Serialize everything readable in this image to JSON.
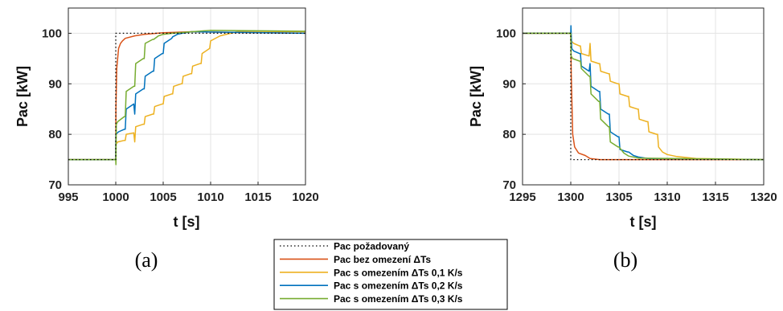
{
  "legend": [
    {
      "label": "Pac požadovaný",
      "color": "#000000",
      "dash": true
    },
    {
      "label": "Pac bez omezení ΔTs",
      "color": "#D95319"
    },
    {
      "label": "Pac s omezením ΔTs 0,1 K/s",
      "color": "#EDB120"
    },
    {
      "label": "Pac s omezením ΔTs 0,2 K/s",
      "color": "#0072BD"
    },
    {
      "label": "Pac s omezením ΔTs 0,3 K/s",
      "color": "#77AC30"
    }
  ],
  "chart_data": [
    {
      "type": "line",
      "panel_label": "(a)",
      "xlabel": "t [s]",
      "ylabel": "Pac [kW]",
      "xlim": [
        995,
        1020
      ],
      "ylim": [
        70,
        105
      ],
      "xticks": [
        995,
        1000,
        1005,
        1010,
        1015,
        1020
      ],
      "yticks": [
        70,
        80,
        90,
        100
      ],
      "grid": true,
      "series": [
        {
          "name": "Pac požadovaný",
          "color": "#000000",
          "dash": true,
          "x": [
            995,
            1000,
            1000,
            1020
          ],
          "y": [
            75,
            75,
            100,
            100
          ]
        },
        {
          "name": "Pac bez omezení ΔTs",
          "color": "#D95319",
          "x": [
            995,
            1000,
            1000.02,
            1000.1,
            1000.3,
            1000.5,
            1000.7,
            1001,
            1002,
            1003,
            1005,
            1008,
            1012,
            1020
          ],
          "y": [
            75,
            75,
            85,
            93,
            97,
            98,
            98.5,
            99,
            99.5,
            99.8,
            100.1,
            100.3,
            100.2,
            100
          ]
        },
        {
          "name": "Pac s omezením ΔTs 0,1 K/s",
          "color": "#EDB120",
          "x": [
            995,
            1000,
            1000.02,
            1000.2,
            1000.9,
            1001,
            1001.1,
            1001.9,
            1002,
            1002.1,
            1002.9,
            1003,
            1003.1,
            1003.9,
            1004,
            1004.1,
            1004.9,
            1005,
            1005.1,
            1005.9,
            1006,
            1006.1,
            1006.9,
            1007,
            1007.1,
            1007.9,
            1008,
            1008.1,
            1008.9,
            1009,
            1009.1,
            1009.9,
            1010,
            1011,
            1013,
            1020
          ],
          "y": [
            75,
            75,
            78,
            78.5,
            78.8,
            78.8,
            80,
            80.3,
            78.5,
            81.5,
            82,
            82,
            83.5,
            84,
            84,
            85.5,
            86,
            86,
            87.5,
            88,
            88,
            89.5,
            90,
            90,
            91.5,
            92,
            92,
            93.5,
            94,
            94,
            96,
            97,
            98.5,
            99.5,
            100.4,
            100.3
          ]
        },
        {
          "name": "Pac s omezením ΔTs 0,2 K/s",
          "color": "#0072BD",
          "x": [
            995,
            1000,
            1000.02,
            1000.3,
            1000.9,
            1001,
            1001.1,
            1001.9,
            1002,
            1002.1,
            1002.9,
            1003,
            1003.1,
            1003.9,
            1004,
            1004.1,
            1004.9,
            1005,
            1005.1,
            1005.9,
            1006,
            1006.5,
            1007,
            1008,
            1020
          ],
          "y": [
            75,
            75,
            80,
            80.5,
            81,
            81,
            85,
            86,
            84,
            88,
            89,
            89,
            91.5,
            92.5,
            92.5,
            95,
            96,
            96,
            98,
            99,
            99.3,
            99.8,
            100,
            100.3,
            100
          ]
        },
        {
          "name": "Pac s omezením ΔTs 0,3 K/s",
          "color": "#77AC30",
          "x": [
            995,
            1000,
            1000.02,
            1000.06,
            1000.2,
            1000.9,
            1001,
            1001.1,
            1001.9,
            1002,
            1002.1,
            1002.9,
            1003,
            1003.1,
            1003.9,
            1004,
            1004.5,
            1005,
            1006,
            1010,
            1020
          ],
          "y": [
            75,
            75,
            74,
            82,
            82.5,
            83.5,
            83.5,
            88.5,
            89.5,
            89.5,
            94,
            95,
            95,
            98,
            98.8,
            98.8,
            99.5,
            99.8,
            100,
            100.6,
            100.4
          ]
        }
      ]
    },
    {
      "type": "line",
      "panel_label": "(b)",
      "xlabel": "t [s]",
      "ylabel": "Pac [kW]",
      "xlim": [
        1295,
        1320
      ],
      "ylim": [
        70,
        105
      ],
      "xticks": [
        1295,
        1300,
        1305,
        1310,
        1315,
        1320
      ],
      "yticks": [
        70,
        80,
        90,
        100
      ],
      "grid": true,
      "series": [
        {
          "name": "Pac požadovaný",
          "color": "#000000",
          "dash": true,
          "x": [
            1295,
            1300,
            1300,
            1320
          ],
          "y": [
            100,
            100,
            75,
            75
          ]
        },
        {
          "name": "Pac bez omezení ΔTs",
          "color": "#D95319",
          "x": [
            1295,
            1300,
            1300.05,
            1300.2,
            1300.4,
            1300.8,
            1301.5,
            1302,
            1303,
            1305,
            1320
          ],
          "y": [
            100,
            100,
            92,
            80,
            77.5,
            76.3,
            75.8,
            75.2,
            75,
            75,
            75
          ]
        },
        {
          "name": "Pac s omezením ΔTs 0,1 K/s",
          "color": "#EDB120",
          "x": [
            1295,
            1300,
            1300.05,
            1300.3,
            1300.9,
            1301,
            1301.1,
            1301.9,
            1302,
            1302.1,
            1302.9,
            1303,
            1303.1,
            1303.9,
            1304,
            1304.1,
            1304.9,
            1305,
            1305.1,
            1305.9,
            1306,
            1306.1,
            1306.9,
            1307,
            1307.1,
            1307.9,
            1308,
            1308.1,
            1308.9,
            1309,
            1309.1,
            1309.5,
            1310,
            1311,
            1313,
            1320
          ],
          "y": [
            100,
            100,
            98.5,
            98,
            97.5,
            97.5,
            96,
            95.5,
            98,
            94.5,
            94,
            94,
            92.5,
            92,
            92,
            90.5,
            90,
            90,
            88,
            87.5,
            87.5,
            85.5,
            85,
            85,
            83,
            82.5,
            82.5,
            80.5,
            80,
            80,
            77.5,
            76.5,
            76,
            75.6,
            75.2,
            75
          ]
        },
        {
          "name": "Pac s omezením ΔTs 0,2 K/s",
          "color": "#0072BD",
          "x": [
            1295,
            1300,
            1300.02,
            1300.1,
            1300.3,
            1300.9,
            1301,
            1301.1,
            1301.9,
            1302,
            1302.1,
            1302.9,
            1303,
            1303.1,
            1303.9,
            1304,
            1304.1,
            1304.9,
            1305,
            1305.1,
            1305.9,
            1306,
            1306.5,
            1307,
            1308,
            1320
          ],
          "y": [
            100,
            100,
            101.5,
            97,
            96.5,
            96,
            96,
            93.5,
            92.5,
            94,
            89.5,
            88.5,
            88.5,
            85,
            84,
            84,
            80.5,
            79.5,
            79.5,
            77,
            76.5,
            76.5,
            75.8,
            75.5,
            75.2,
            75
          ]
        },
        {
          "name": "Pac s omezením ΔTs 0,3 K/s",
          "color": "#77AC30",
          "x": [
            1295,
            1300,
            1300.03,
            1300.2,
            1300.9,
            1301,
            1301.1,
            1301.9,
            1302,
            1302.1,
            1302.9,
            1303,
            1303.1,
            1303.9,
            1304,
            1304.1,
            1304.9,
            1305,
            1305.5,
            1306,
            1307,
            1320
          ],
          "y": [
            100,
            100,
            95.5,
            95,
            94.5,
            94.5,
            93,
            91.5,
            91.5,
            88,
            86.5,
            86.5,
            83,
            81.5,
            81.5,
            78.5,
            77.5,
            77.5,
            76.3,
            75.7,
            75.3,
            75
          ]
        }
      ]
    }
  ]
}
